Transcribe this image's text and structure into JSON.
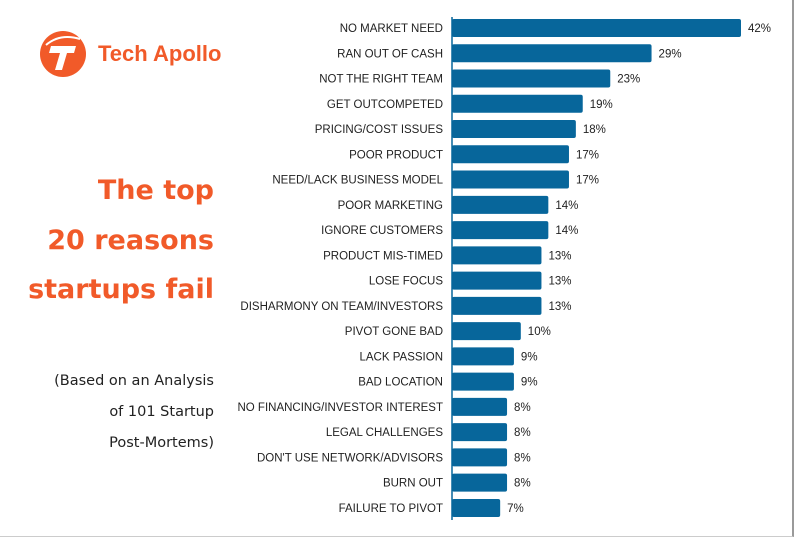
{
  "brand": {
    "name": "Tech Apollo",
    "color": "#f15a29"
  },
  "title_lines": [
    "The top",
    "20 reasons",
    "startups fail"
  ],
  "subtitle_lines": [
    "(Based on an Analysis",
    "of 101 Startup",
    "Post-Mortems)"
  ],
  "chart_data": {
    "type": "bar",
    "orientation": "horizontal",
    "title": "The top 20 reasons startups fail",
    "unit": "%",
    "bar_color": "#07669b",
    "categories": [
      "NO MARKET NEED",
      "RAN OUT OF CASH",
      "NOT THE RIGHT TEAM",
      "GET OUTCOMPETED",
      "PRICING/COST ISSUES",
      "POOR PRODUCT",
      "NEED/LACK BUSINESS MODEL",
      "POOR MARKETING",
      "IGNORE CUSTOMERS",
      "PRODUCT MIS-TIMED",
      "LOSE FOCUS",
      "DISHARMONY ON TEAM/INVESTORS",
      "PIVOT GONE BAD",
      "LACK PASSION",
      "BAD LOCATION",
      "NO FINANCING/INVESTOR INTEREST",
      "LEGAL CHALLENGES",
      "DON'T USE NETWORK/ADVISORS",
      "BURN OUT",
      "FAILURE TO PIVOT"
    ],
    "values": [
      42,
      29,
      23,
      19,
      18,
      17,
      17,
      14,
      14,
      13,
      13,
      13,
      10,
      9,
      9,
      8,
      8,
      8,
      8,
      7
    ],
    "value_labels": [
      "42%",
      "29%",
      "23%",
      "19%",
      "18%",
      "17%",
      "17%",
      "14%",
      "14%",
      "13%",
      "13%",
      "13%",
      "10%",
      "9%",
      "9%",
      "8%",
      "8%",
      "8%",
      "8%",
      "7%"
    ],
    "xlim": [
      0,
      42
    ],
    "grid": false
  }
}
